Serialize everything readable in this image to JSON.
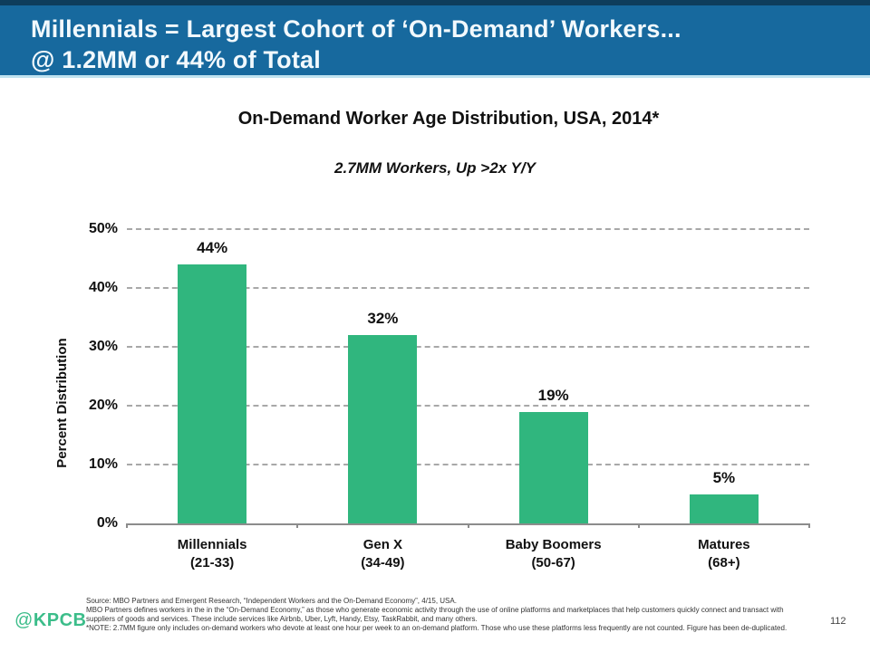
{
  "header": {
    "title_line1": "Millennials = Largest Cohort of ‘On-Demand’ Workers...",
    "title_line2": "@ 1.2MM or 44% of Total",
    "background_color": "#17699E",
    "top_strip_color": "#0E3D5C",
    "bottom_strip_color": "#BFE2F0"
  },
  "chart": {
    "title": "On-Demand Worker Age Distribution, USA, 2014*",
    "subtitle": "2.7MM Workers, Up >2x Y/Y"
  },
  "chart_data": {
    "type": "bar",
    "title": "On-Demand Worker Age Distribution, USA, 2014*",
    "subtitle": "2.7MM Workers, Up >2x Y/Y",
    "categories": [
      "Millennials",
      "Gen X",
      "Baby Boomers",
      "Matures"
    ],
    "category_sublabels": [
      "(21-33)",
      "(34-49)",
      "(50-67)",
      "(68+)"
    ],
    "values": [
      44,
      32,
      19,
      5
    ],
    "value_labels": [
      "44%",
      "32%",
      "19%",
      "5%"
    ],
    "xlabel": "",
    "ylabel": "Percent Distribution",
    "ylim": [
      0,
      50
    ],
    "yticks": [
      0,
      10,
      20,
      30,
      40,
      50
    ],
    "ytick_labels": [
      "0%",
      "10%",
      "20%",
      "30%",
      "40%",
      "50%"
    ],
    "grid": "horizontal-dashed",
    "legend": "none",
    "bar_color": "#30B67E"
  },
  "footer": {
    "logo": "KPCB",
    "logo_at": "@",
    "page_number": "112",
    "notes": [
      "Source:  MBO Partners and Emergent Research, “Independent Workers and the On-Demand Economy”, 4/15, USA.",
      "MBO Partners defines workers in the in the “On-Demand Economy,” as those who generate economic activity through the use of online platforms and marketplaces that help customers quickly connect and transact with suppliers of goods and services. These include services like Airbnb, Uber, Lyft, Handy, Etsy, TaskRabbit, and many others.",
      "*NOTE: 2.7MM figure only includes on-demand workers who devote at least one hour per week to an on-demand platform. Those who use these platforms less frequently are not counted. Figure has been de-duplicated."
    ]
  }
}
